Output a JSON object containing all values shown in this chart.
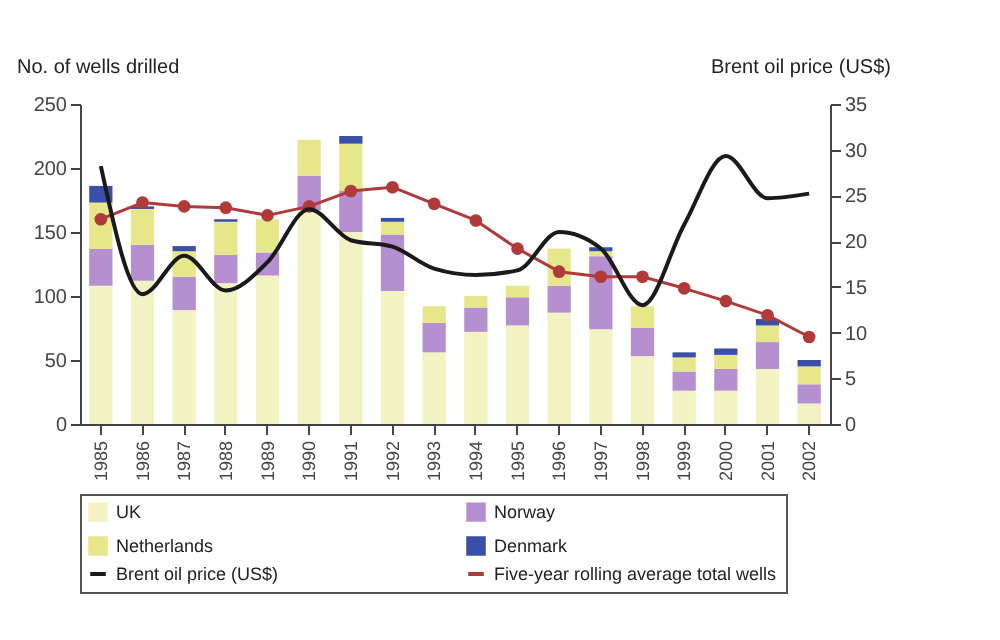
{
  "chart_data": {
    "type": "bar",
    "stacked": true,
    "ylabel": "No. of wells drilled",
    "y2label": "Brent oil price (US$)",
    "categories": [
      "1985",
      "1986",
      "1987",
      "1988",
      "1989",
      "1990",
      "1991",
      "1992",
      "1993",
      "1994",
      "1995",
      "1996",
      "1997",
      "1998",
      "1999",
      "2000",
      "2001",
      "2002"
    ],
    "series": [
      {
        "name": "UK",
        "color": "#f2f2c2",
        "values": [
          108,
          112,
          89,
          110,
          116,
          167,
          150,
          104,
          56,
          72,
          77,
          87,
          74,
          53,
          26,
          26,
          43,
          16
        ]
      },
      {
        "name": "Norway",
        "color": "#b58fcf",
        "values": [
          29,
          28,
          26,
          22,
          18,
          27,
          32,
          44,
          23,
          19,
          22,
          21,
          57,
          22,
          15,
          17,
          21,
          15
        ]
      },
      {
        "name": "Netherlands",
        "color": "#e6e68a",
        "values": [
          36,
          28,
          20,
          26,
          26,
          28,
          37,
          10,
          13,
          9,
          9,
          29,
          4,
          17,
          11,
          11,
          13,
          14
        ]
      },
      {
        "name": "Denmark",
        "color": "#3a4fa8",
        "values": [
          13,
          2,
          4,
          2,
          null,
          0,
          6,
          3,
          0,
          0,
          0,
          0,
          3,
          0,
          4,
          5,
          5,
          5
        ]
      },
      {
        "name": "Brent oil price (US$)",
        "type": "line",
        "axis": "y2",
        "color": "#1a1a1a",
        "values": [
          28.2,
          14.2,
          18.4,
          14.6,
          17.7,
          23.5,
          20.1,
          19.4,
          17.0,
          16.3,
          16.8,
          21.0,
          19.2,
          13.0,
          21.8,
          29.3,
          24.7,
          25.2
        ]
      },
      {
        "name": "Five-year rolling average total wells",
        "type": "line",
        "marker": "circle",
        "color": "#b03a3a",
        "values": [
          160,
          173,
          170,
          169,
          163,
          170,
          182,
          185,
          172,
          159,
          137,
          119,
          115,
          115,
          106,
          96,
          85,
          68
        ]
      }
    ],
    "ylim": [
      0,
      250
    ],
    "yticks": [
      0,
      50,
      100,
      150,
      200,
      250
    ],
    "y2lim": [
      0,
      35
    ],
    "y2ticks": [
      0,
      5,
      10,
      15,
      20,
      25,
      30,
      35
    ],
    "grid": false,
    "legend": "bottom"
  }
}
